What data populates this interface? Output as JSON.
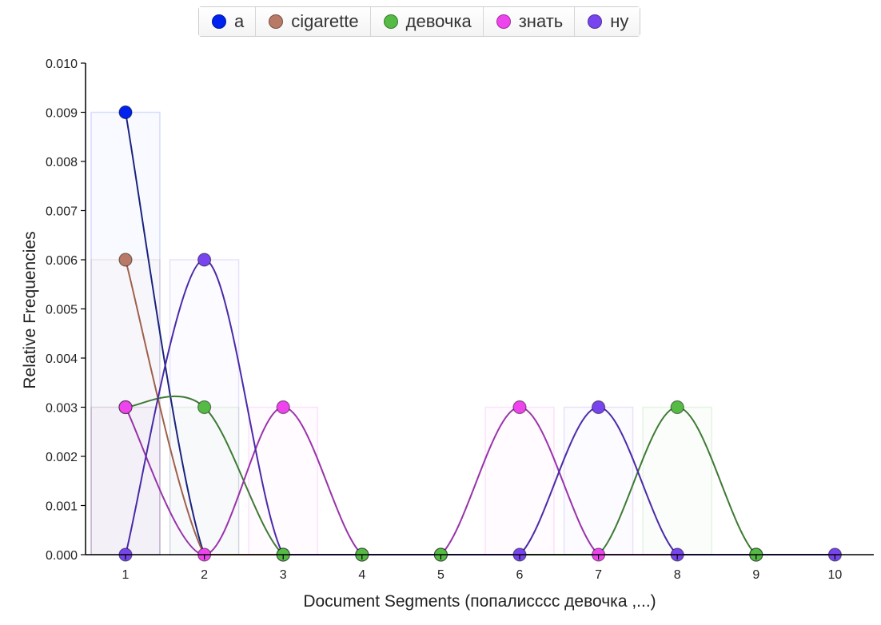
{
  "legend": {
    "items": [
      {
        "label": "а",
        "color": "#0022ee"
      },
      {
        "label": "cigarette",
        "color": "#b87a66"
      },
      {
        "label": "девочка",
        "color": "#55bb44"
      },
      {
        "label": "знать",
        "color": "#ee44ee"
      },
      {
        "label": "ну",
        "color": "#7744ee"
      }
    ]
  },
  "chart_data": {
    "type": "line",
    "xlabel": "Document Segments (попалисссс девочка ,...)",
    "ylabel": "Relative Frequencies",
    "categories": [
      1,
      2,
      3,
      4,
      5,
      6,
      7,
      8,
      9,
      10
    ],
    "x_tick_labels": [
      "1",
      "2",
      "3",
      "4",
      "5",
      "6",
      "7",
      "8",
      "9",
      "10"
    ],
    "ylim": [
      0,
      0.01
    ],
    "y_ticks": [
      0,
      0.001,
      0.002,
      0.003,
      0.004,
      0.005,
      0.006,
      0.007,
      0.008,
      0.009,
      0.01
    ],
    "y_tick_labels": [
      "0.000",
      "0.001",
      "0.002",
      "0.003",
      "0.004",
      "0.005",
      "0.006",
      "0.007",
      "0.008",
      "0.009",
      "0.010"
    ],
    "series": [
      {
        "name": "а",
        "color": "#0022ee",
        "line_color": "#1a237e",
        "values": [
          0.009,
          0,
          0,
          0,
          0,
          0,
          0,
          0,
          0,
          0
        ]
      },
      {
        "name": "cigarette",
        "color": "#b87a66",
        "line_color": "#a0604c",
        "values": [
          0.006,
          0,
          0,
          0,
          0,
          0,
          0,
          0,
          0,
          0
        ]
      },
      {
        "name": "девочка",
        "color": "#55bb44",
        "line_color": "#3d7a33",
        "values": [
          0.003,
          0.003,
          0,
          0,
          0,
          0,
          0,
          0.003,
          0,
          0
        ]
      },
      {
        "name": "знать",
        "color": "#ee44ee",
        "line_color": "#9933aa",
        "values": [
          0.003,
          0,
          0.003,
          0,
          0,
          0.003,
          0,
          0,
          0,
          0
        ]
      },
      {
        "name": "ну",
        "color": "#7744ee",
        "line_color": "#4a2aa8",
        "values": [
          0,
          0.006,
          0,
          0,
          0,
          0,
          0.003,
          0,
          0,
          0
        ]
      }
    ],
    "grid": false,
    "legend_position": "top"
  }
}
